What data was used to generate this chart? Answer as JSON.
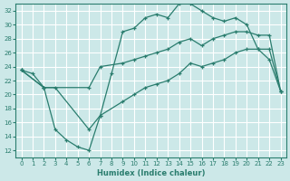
{
  "xlabel": "Humidex (Indice chaleur)",
  "bg_color": "#cce8e8",
  "grid_color": "#ffffff",
  "line_color": "#2a7d6e",
  "xlim": [
    -0.5,
    23.5
  ],
  "ylim": [
    11,
    33
  ],
  "xticks": [
    0,
    1,
    2,
    3,
    4,
    5,
    6,
    7,
    8,
    9,
    10,
    11,
    12,
    13,
    14,
    15,
    16,
    17,
    18,
    19,
    20,
    21,
    22,
    23
  ],
  "yticks": [
    12,
    14,
    16,
    18,
    20,
    22,
    24,
    26,
    28,
    30,
    32
  ],
  "line1_x": [
    0,
    1,
    2,
    3,
    4,
    5,
    6,
    7,
    8,
    9,
    10,
    11,
    12,
    13,
    14,
    15,
    16,
    17,
    18,
    19,
    20,
    21,
    22,
    23
  ],
  "line1_y": [
    23.5,
    23.0,
    21.0,
    15.0,
    13.5,
    12.5,
    12.0,
    17.0,
    23.0,
    29.0,
    29.5,
    31.0,
    31.5,
    31.0,
    33.0,
    33.0,
    32.0,
    31.0,
    30.5,
    31.0,
    30.0,
    26.5,
    25.0,
    20.5
  ],
  "line2_x": [
    0,
    2,
    6,
    7,
    9,
    10,
    11,
    12,
    13,
    14,
    15,
    16,
    17,
    18,
    19,
    20,
    21,
    22,
    23
  ],
  "line2_y": [
    23.5,
    21.0,
    21.0,
    24.0,
    24.5,
    25.0,
    25.5,
    26.0,
    26.5,
    27.5,
    28.0,
    27.0,
    28.0,
    28.5,
    29.0,
    29.0,
    28.5,
    28.5,
    20.5
  ],
  "line3_x": [
    0,
    2,
    3,
    6,
    7,
    9,
    10,
    11,
    12,
    13,
    14,
    15,
    16,
    17,
    18,
    19,
    20,
    21,
    22,
    23
  ],
  "line3_y": [
    23.5,
    21.0,
    21.0,
    15.0,
    17.0,
    19.0,
    20.0,
    21.0,
    21.5,
    22.0,
    23.0,
    24.5,
    24.0,
    24.5,
    25.0,
    26.0,
    26.5,
    26.5,
    26.5,
    20.5
  ]
}
